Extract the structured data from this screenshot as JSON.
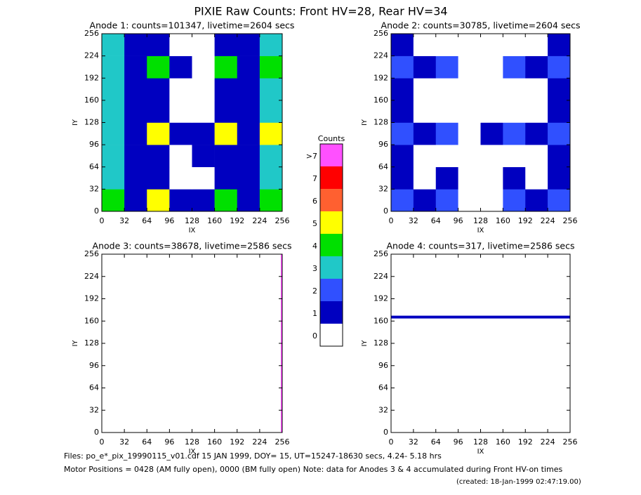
{
  "title": "PIXIE Raw Counts:  Front HV=28, Rear HV=34",
  "colorbar": {
    "title": "Counts",
    "labels": [
      "0",
      "1",
      "2",
      "3",
      "4",
      "5",
      "6",
      "7",
      ">7"
    ],
    "colors": [
      "#ffffff",
      "#0000c0",
      "#3050ff",
      "#20c8c8",
      "#00e000",
      "#ffff00",
      "#ff6030",
      "#ff0000",
      "#ff50ff"
    ]
  },
  "footer": {
    "files": "Files: po_e*_pix_19990115_v01.cdf    15 JAN 1999, DOY= 15, UT=15247-18630 secs,  4.24- 5.18 hrs",
    "motor": "Motor Positions = 0428 (AM fully open), 0000 (BM fully open)    Note: data for Anodes 3 & 4 accumulated during Front HV-on times",
    "created": "(created: 18-Jan-1999 02:47:19.00)"
  },
  "chart_data": [
    {
      "type": "heatmap",
      "title": "Anode 1: counts=101347, livetime=2604 secs",
      "x_label": "IX",
      "y_label": "IY",
      "xlim": [
        0,
        256
      ],
      "ylim": [
        0,
        256
      ],
      "xticks": [
        0,
        32,
        64,
        96,
        128,
        160,
        192,
        224,
        256
      ],
      "yticks": [
        0,
        32,
        64,
        96,
        128,
        160,
        192,
        224,
        256
      ],
      "z": [
        [
          4,
          1,
          5,
          1,
          1,
          4,
          1,
          4
        ],
        [
          3,
          1,
          1,
          0,
          0,
          1,
          1,
          3
        ],
        [
          3,
          1,
          1,
          0,
          1,
          1,
          1,
          3
        ],
        [
          3,
          1,
          5,
          1,
          1,
          5,
          1,
          5
        ],
        [
          3,
          1,
          1,
          0,
          0,
          1,
          1,
          3
        ],
        [
          3,
          1,
          1,
          0,
          0,
          1,
          1,
          3
        ],
        [
          3,
          1,
          4,
          1,
          0,
          4,
          1,
          4
        ],
        [
          3,
          1,
          1,
          0,
          0,
          1,
          1,
          3
        ]
      ]
    },
    {
      "type": "heatmap",
      "title": "Anode 2: counts=30785, livetime=2604 secs",
      "x_label": "IX",
      "y_label": "IY",
      "xlim": [
        0,
        256
      ],
      "ylim": [
        0,
        256
      ],
      "xticks": [
        0,
        32,
        64,
        96,
        128,
        160,
        192,
        224,
        256
      ],
      "yticks": [
        0,
        32,
        64,
        96,
        128,
        160,
        192,
        224,
        256
      ],
      "z": [
        [
          2,
          1,
          2,
          0,
          0,
          2,
          1,
          2
        ],
        [
          1,
          0,
          1,
          0,
          0,
          1,
          0,
          1
        ],
        [
          1,
          0,
          0,
          0,
          0,
          0,
          0,
          1
        ],
        [
          2,
          1,
          2,
          0,
          1,
          2,
          1,
          2
        ],
        [
          1,
          0,
          0,
          0,
          0,
          0,
          0,
          1
        ],
        [
          1,
          0,
          0,
          0,
          0,
          0,
          0,
          1
        ],
        [
          2,
          1,
          2,
          0,
          0,
          2,
          1,
          2
        ],
        [
          1,
          0,
          0,
          0,
          0,
          0,
          0,
          1
        ]
      ]
    },
    {
      "type": "heatmap",
      "title": "Anode 3: counts=38678, livetime=2586 secs",
      "x_label": "IX",
      "y_label": "IY",
      "xlim": [
        0,
        256
      ],
      "ylim": [
        0,
        256
      ],
      "xticks": [
        0,
        32,
        64,
        96,
        128,
        160,
        192,
        224,
        256
      ],
      "yticks": [
        0,
        32,
        64,
        96,
        128,
        160,
        192,
        224,
        256
      ],
      "z": [
        [
          0,
          0,
          0,
          0,
          0,
          0,
          0,
          0,
          0,
          0,
          0,
          0,
          0,
          0,
          0,
          0,
          0,
          0,
          0,
          0,
          0,
          0,
          0,
          0,
          0,
          0,
          0,
          0,
          0,
          0,
          0,
          0,
          0,
          0,
          0,
          0,
          0,
          0,
          0,
          0,
          0,
          0,
          0,
          0,
          0,
          0,
          0,
          0,
          0,
          0,
          0,
          0,
          0,
          0,
          0,
          0,
          0,
          0,
          0,
          0,
          0,
          0,
          0,
          0,
          0,
          0,
          0,
          0,
          0,
          0,
          0,
          0,
          0,
          0,
          0,
          0,
          0,
          0,
          0,
          0,
          0,
          0,
          0,
          0,
          0,
          0,
          0,
          0,
          0,
          0,
          0,
          0,
          0,
          0,
          0,
          0,
          0,
          0,
          0,
          0,
          0,
          0,
          0,
          0,
          0,
          0,
          0,
          0,
          0,
          0,
          0,
          0,
          0,
          0,
          0,
          0,
          0,
          0,
          0,
          0,
          0,
          0,
          0,
          0,
          0,
          0,
          0,
          8
        ]
      ]
    },
    {
      "type": "heatmap",
      "title": "Anode 4: counts=317, livetime=2586 secs",
      "x_label": "IX",
      "y_label": "IY",
      "xlim": [
        0,
        256
      ],
      "ylim": [
        0,
        256
      ],
      "xticks": [
        0,
        32,
        64,
        96,
        128,
        160,
        192,
        224,
        256
      ],
      "yticks": [
        0,
        32,
        64,
        96,
        128,
        160,
        192,
        224,
        256
      ],
      "z": [
        [
          0
        ],
        [
          0
        ],
        [
          0
        ],
        [
          0
        ],
        [
          0
        ],
        [
          0
        ],
        [
          0
        ],
        [
          0
        ],
        [
          0
        ],
        [
          0
        ],
        [
          0
        ],
        [
          0
        ],
        [
          0
        ],
        [
          0
        ],
        [
          0
        ],
        [
          0
        ],
        [
          0
        ],
        [
          0
        ],
        [
          0
        ],
        [
          0
        ],
        [
          0
        ],
        [
          0
        ],
        [
          0
        ],
        [
          0
        ],
        [
          0
        ],
        [
          0
        ],
        [
          0
        ],
        [
          0
        ],
        [
          0
        ],
        [
          0
        ],
        [
          0
        ],
        [
          0
        ],
        [
          0
        ],
        [
          0
        ],
        [
          0
        ],
        [
          0
        ],
        [
          0
        ],
        [
          0
        ],
        [
          0
        ],
        [
          0
        ],
        [
          0
        ],
        [
          1
        ],
        [
          0
        ],
        [
          0
        ],
        [
          0
        ],
        [
          0
        ],
        [
          0
        ],
        [
          0
        ],
        [
          0
        ],
        [
          0
        ],
        [
          0
        ],
        [
          0
        ],
        [
          0
        ],
        [
          0
        ],
        [
          0
        ],
        [
          0
        ],
        [
          0
        ],
        [
          0
        ],
        [
          0
        ],
        [
          0
        ],
        [
          0
        ],
        [
          0
        ],
        [
          0
        ],
        [
          0
        ]
      ]
    }
  ]
}
